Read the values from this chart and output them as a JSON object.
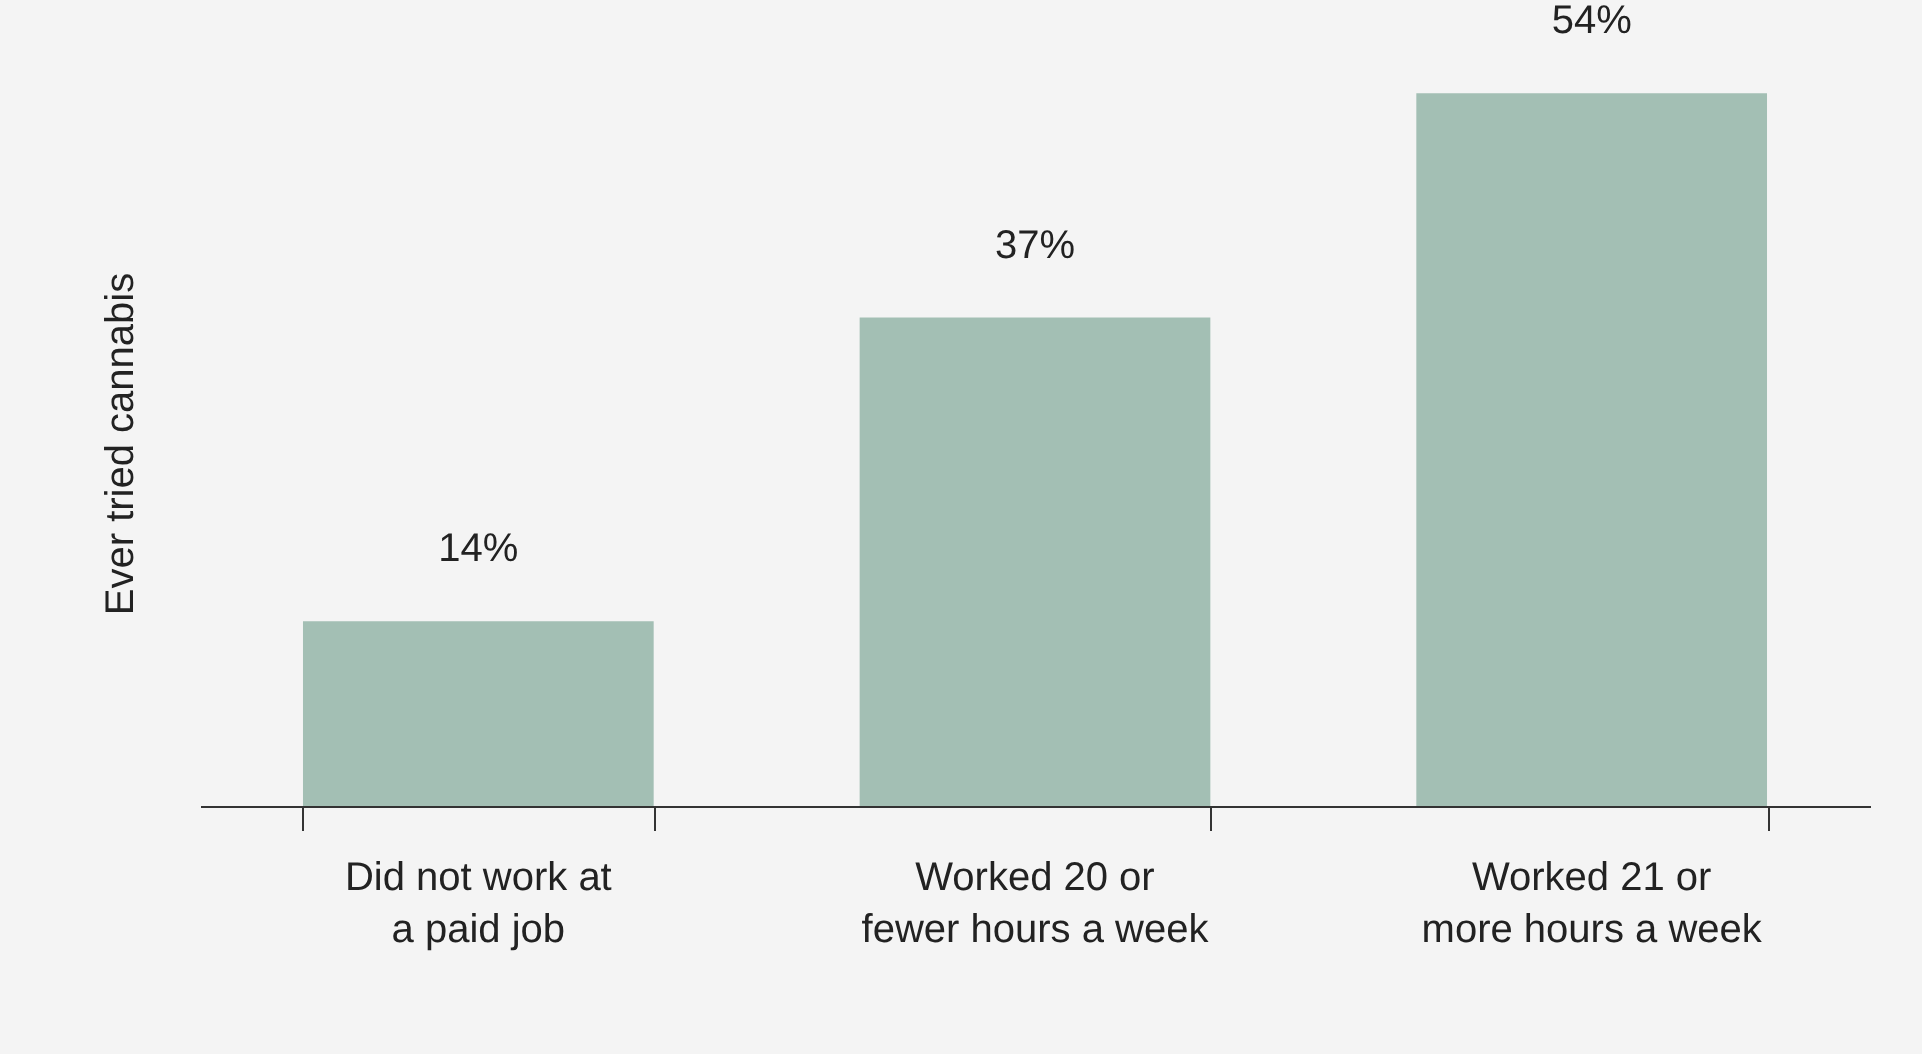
{
  "chart_data": {
    "type": "bar",
    "ylabel": "Ever tried cannabis",
    "categories": [
      "Did not work at a paid job",
      "Worked 20 or fewer hours a week",
      "Worked 21 or more hours a week"
    ],
    "values": [
      14,
      37,
      54
    ],
    "value_labels": [
      "14%",
      "37%",
      "54%"
    ],
    "color": "#a3bfb4",
    "tick_labels": "x",
    "grid": false
  }
}
